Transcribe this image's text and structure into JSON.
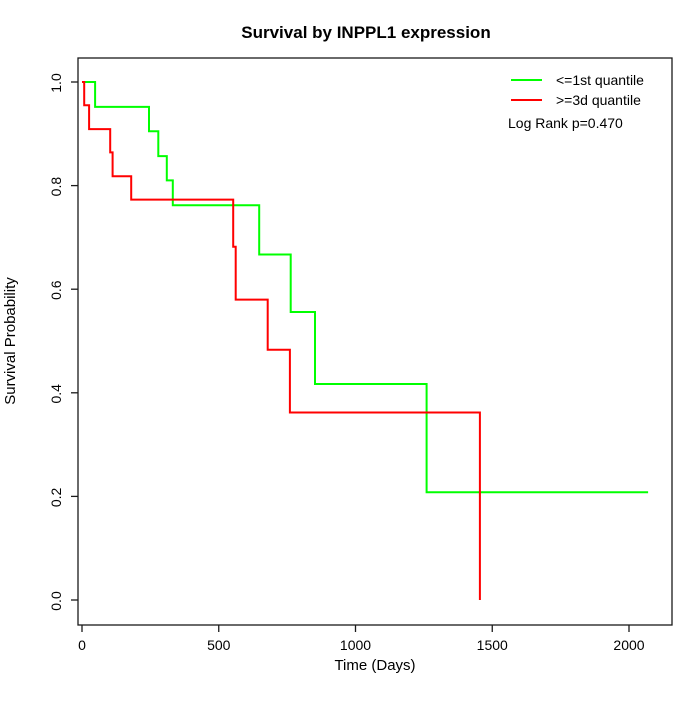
{
  "title": "Survival by INPPL1 expression",
  "axes": {
    "xlabel": "Time (Days)",
    "ylabel": "Survival Probability",
    "x_tick_labels": [
      "0",
      "500",
      "1000",
      "1500",
      "2000"
    ],
    "y_tick_labels": [
      "0.0",
      "0.2",
      "0.4",
      "0.6",
      "0.8",
      "1.0"
    ]
  },
  "legend": {
    "entries": [
      {
        "label": "<=1st quantile",
        "color": "#00ff00"
      },
      {
        "label": ">=3d quantile",
        "color": "#ff0000"
      }
    ],
    "annotation": "Log Rank p=0.470"
  },
  "chart_data": {
    "type": "line",
    "subtype": "kaplan-meier-step-curve",
    "title": "Survival by INPPL1 expression",
    "xlabel": "Time (Days)",
    "ylabel": "Survival Probability",
    "xlim": [
      0,
      2070
    ],
    "ylim": [
      0.0,
      1.0
    ],
    "x_ticks": [
      0,
      500,
      1000,
      1500,
      2000
    ],
    "y_ticks": [
      0.0,
      0.2,
      0.4,
      0.6,
      0.8,
      1.0
    ],
    "grid": false,
    "legend_position": "top-right",
    "annotation": "Log Rank p=0.470",
    "series": [
      {
        "name": "<=1st quantile",
        "color": "#00ff00",
        "end_time": 2070,
        "steps": [
          [
            0,
            1.0
          ],
          [
            48,
            0.952
          ],
          [
            245,
            0.905
          ],
          [
            279,
            0.857
          ],
          [
            310,
            0.81
          ],
          [
            332,
            0.762
          ],
          [
            648,
            0.667
          ],
          [
            763,
            0.556
          ],
          [
            852,
            0.417
          ],
          [
            1260,
            0.208
          ]
        ]
      },
      {
        "name": ">=3d quantile",
        "color": "#ff0000",
        "end_time": 1455,
        "steps": [
          [
            0,
            1.0
          ],
          [
            8,
            0.955
          ],
          [
            26,
            0.909
          ],
          [
            103,
            0.864
          ],
          [
            112,
            0.818
          ],
          [
            180,
            0.773
          ],
          [
            553,
            0.682
          ],
          [
            562,
            0.58
          ],
          [
            679,
            0.483
          ],
          [
            760,
            0.362
          ],
          [
            1455,
            0.0
          ]
        ]
      }
    ]
  }
}
